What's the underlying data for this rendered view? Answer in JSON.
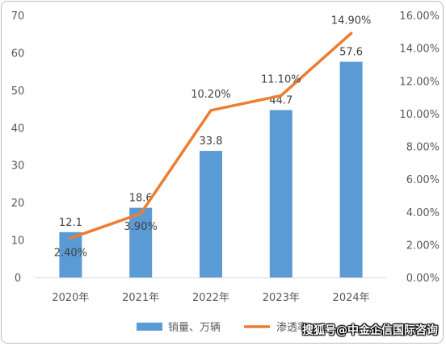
{
  "chart_data": {
    "type": "bar",
    "title": "",
    "categories": [
      "2020年",
      "2021年",
      "2022年",
      "2023年",
      "2024年"
    ],
    "series": [
      {
        "name": "销量、万辆",
        "type": "bar",
        "axis": "left",
        "color": "#5b9bd5",
        "values": [
          12.1,
          18.6,
          33.8,
          44.7,
          57.6
        ],
        "labels": [
          "12.1",
          "18.6",
          "33.8",
          "44.7",
          "57.6"
        ]
      },
      {
        "name": "渗透率",
        "type": "line",
        "axis": "right",
        "color": "#ed7d31",
        "values": [
          2.4,
          3.9,
          10.2,
          11.1,
          14.9
        ],
        "labels": [
          "2.40%",
          "3.90%",
          "10.20%",
          "11.10%",
          "14.90%"
        ]
      }
    ],
    "y_left": {
      "ylim": [
        0,
        70
      ],
      "ticks": [
        "0",
        "10",
        "20",
        "30",
        "40",
        "50",
        "60",
        "70"
      ]
    },
    "y_right": {
      "ylim": [
        0,
        16
      ],
      "ticks": [
        "0.00%",
        "2.00%",
        "4.00%",
        "6.00%",
        "8.00%",
        "10.00%",
        "12.00%",
        "14.00%",
        "16.00%"
      ]
    },
    "grid": false,
    "legend": "bottom"
  },
  "watermark": "搜狐号@中金企信国际咨询"
}
